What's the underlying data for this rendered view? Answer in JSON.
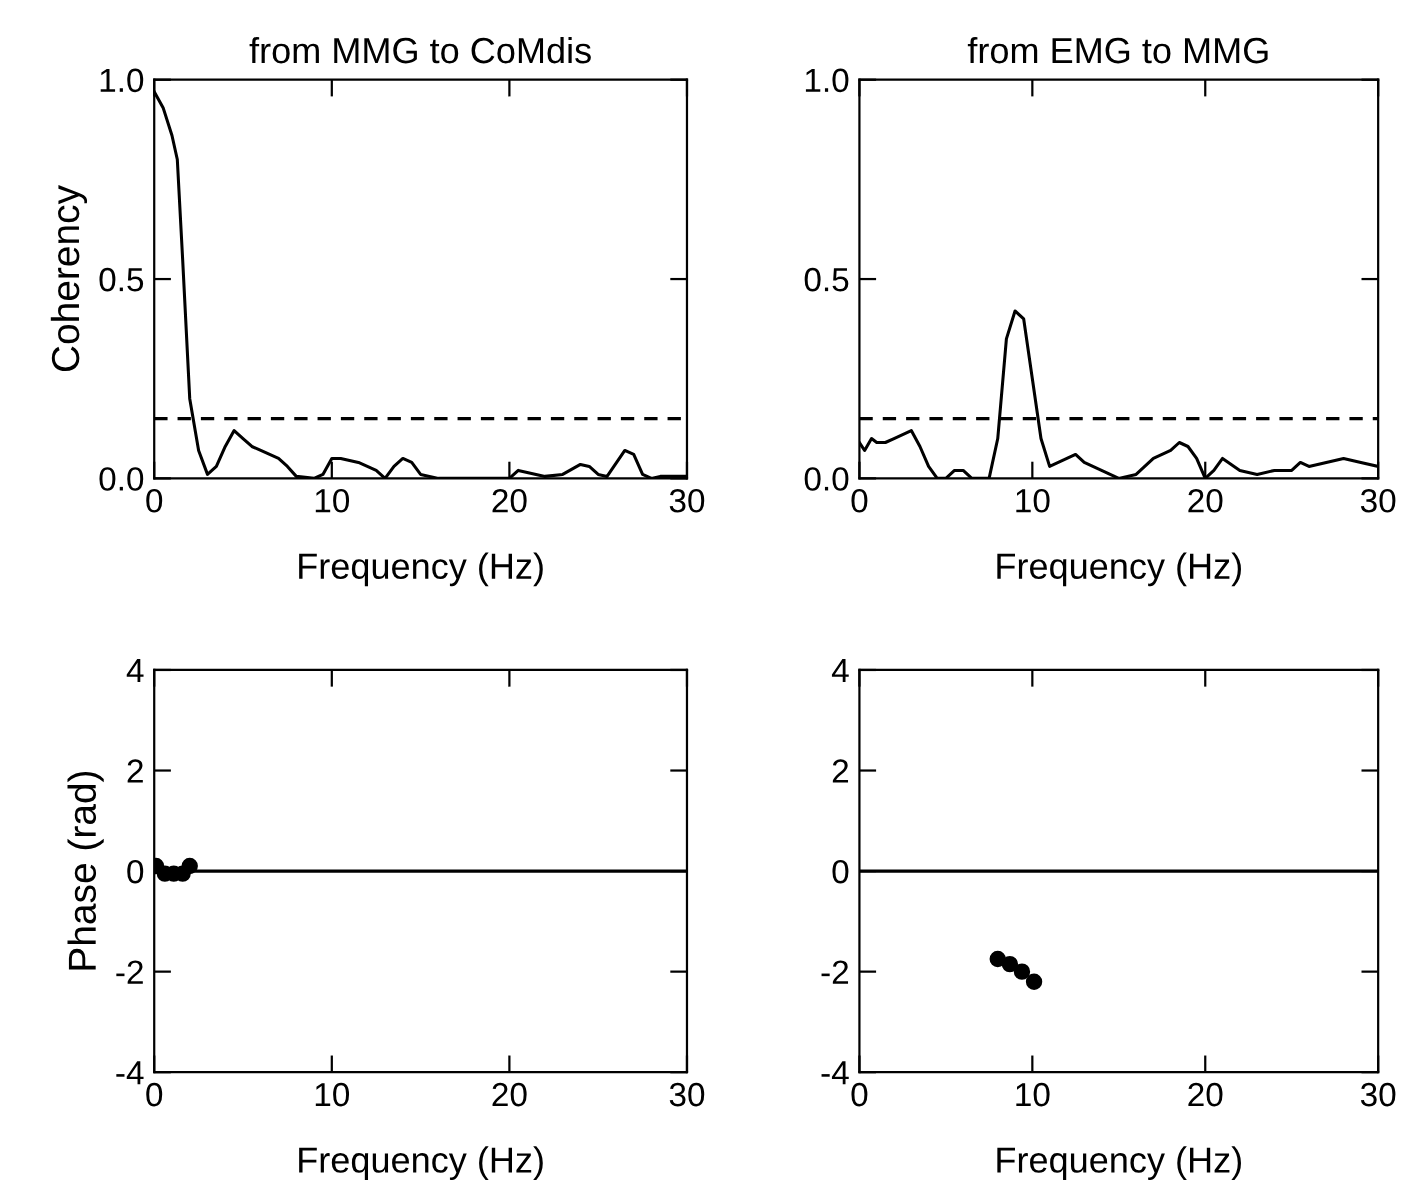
{
  "chart_data": [
    {
      "type": "line",
      "title": "from MMG to CoMdis",
      "xlabel": "Frequency (Hz)",
      "ylabel": "Coherency",
      "xlim": [
        0,
        30
      ],
      "ylim": [
        0,
        1
      ],
      "xticks": [
        0,
        10,
        20,
        30
      ],
      "yticks": [
        {
          "value": 0,
          "label": "0.0"
        },
        0.5,
        {
          "value": 1,
          "label": "1.0"
        }
      ],
      "grid": false,
      "line_style": "solid",
      "series": [
        {
          "color": "#000000",
          "x": [
            0,
            0.5,
            1,
            1.3,
            1.6,
            2,
            2.5,
            3,
            3.5,
            4,
            4.5,
            5,
            5.5,
            6,
            7,
            7.5,
            8,
            9,
            9.5,
            10,
            10.5,
            11.5,
            12.5,
            13,
            13.5,
            14,
            14.5,
            15,
            16,
            17,
            18,
            20,
            20.5,
            21,
            22,
            23,
            24,
            24.5,
            25,
            25.5,
            26.5,
            27,
            27.5,
            28,
            28.5,
            30
          ],
          "values": [
            0.97,
            0.93,
            0.86,
            0.8,
            0.55,
            0.2,
            0.07,
            0.01,
            0.03,
            0.08,
            0.12,
            0.1,
            0.08,
            0.07,
            0.05,
            0.03,
            0.005,
            0,
            0.01,
            0.05,
            0.05,
            0.04,
            0.02,
            0,
            0.03,
            0.05,
            0.04,
            0.01,
            0,
            0,
            0,
            0,
            0.02,
            0.015,
            0.005,
            0.01,
            0.035,
            0.03,
            0.01,
            0.005,
            0.07,
            0.06,
            0.01,
            0,
            0.005,
            0.005
          ]
        }
      ],
      "ref_lines": [
        {
          "axis": "y",
          "value": 0.15,
          "line_style": "dashed",
          "color": "#000000"
        }
      ]
    },
    {
      "type": "line",
      "title": "from EMG to MMG",
      "xlabel": "Frequency (Hz)",
      "xlim": [
        0,
        30
      ],
      "ylim": [
        0,
        1
      ],
      "xticks": [
        0,
        10,
        20,
        30
      ],
      "yticks": [
        {
          "value": 0,
          "label": "0.0"
        },
        0.5,
        {
          "value": 1,
          "label": "1.0"
        }
      ],
      "grid": false,
      "line_style": "solid",
      "series": [
        {
          "color": "#000000",
          "x": [
            0,
            0.3,
            0.7,
            1,
            1.5,
            2,
            3,
            3.5,
            4,
            4.5,
            5,
            5.5,
            6,
            6.5,
            7.5,
            8,
            8.5,
            9,
            9.5,
            10,
            10.5,
            11,
            12,
            12.5,
            13,
            13.5,
            14,
            15,
            16,
            17,
            18,
            18.5,
            19,
            19.5,
            20,
            20.5,
            21,
            22,
            23,
            24,
            25,
            25.5,
            26,
            27,
            28,
            29,
            30
          ],
          "values": [
            0.09,
            0.07,
            0.1,
            0.09,
            0.09,
            0.1,
            0.12,
            0.08,
            0.03,
            0,
            0,
            0.02,
            0.02,
            0,
            0,
            0.1,
            0.35,
            0.42,
            0.4,
            0.25,
            0.1,
            0.03,
            0.05,
            0.06,
            0.04,
            0.03,
            0.02,
            0,
            0.01,
            0.05,
            0.07,
            0.09,
            0.08,
            0.05,
            0,
            0.02,
            0.05,
            0.02,
            0.01,
            0.02,
            0.02,
            0.04,
            0.03,
            0.04,
            0.05,
            0.04,
            0.03
          ]
        }
      ],
      "ref_lines": [
        {
          "axis": "y",
          "value": 0.15,
          "line_style": "dashed",
          "color": "#000000"
        }
      ]
    },
    {
      "type": "scatter",
      "xlabel": "Frequency (Hz)",
      "ylabel": "Phase (rad)",
      "xlim": [
        0,
        30
      ],
      "ylim": [
        -4,
        4
      ],
      "xticks": [
        0,
        10,
        20,
        30
      ],
      "yticks": [
        {
          "value": -4,
          "label": "-4"
        },
        {
          "value": -2,
          "label": "-2"
        },
        0,
        2,
        4
      ],
      "grid": false,
      "marker": "circle",
      "series": [
        {
          "color": "#000000",
          "x": [
            0.1,
            0.6,
            1.1,
            1.6,
            2.0
          ],
          "values": [
            0.1,
            -0.05,
            -0.05,
            -0.05,
            0.1
          ]
        }
      ],
      "ref_lines": [
        {
          "axis": "y",
          "value": 0,
          "line_style": "solid",
          "color": "#000000"
        }
      ]
    },
    {
      "type": "scatter",
      "xlabel": "Frequency (Hz)",
      "xlim": [
        0,
        30
      ],
      "ylim": [
        -4,
        4
      ],
      "xticks": [
        0,
        10,
        20,
        30
      ],
      "yticks": [
        {
          "value": -4,
          "label": "-4"
        },
        {
          "value": -2,
          "label": "-2"
        },
        0,
        2,
        4
      ],
      "grid": false,
      "marker": "circle",
      "series": [
        {
          "color": "#000000",
          "x": [
            8.0,
            8.7,
            9.4,
            10.1
          ],
          "values": [
            -1.75,
            -1.85,
            -2.0,
            -2.2
          ]
        }
      ],
      "ref_lines": [
        {
          "axis": "y",
          "value": 0,
          "line_style": "solid",
          "color": "#000000"
        }
      ]
    }
  ]
}
